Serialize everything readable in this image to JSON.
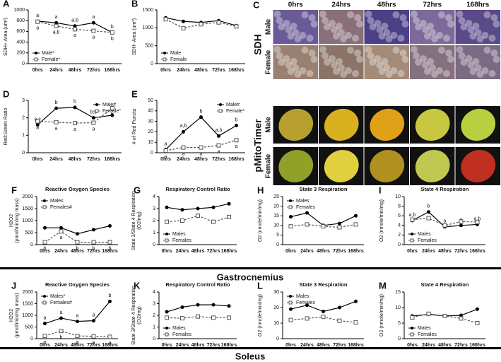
{
  "chart_data": [
    {
      "type": "line",
      "panel": "A",
      "ylabel": [
        "SDH+ Area (um²)"
      ],
      "categories": [
        "0hrs",
        "24hrs",
        "48hrs",
        "72hrs",
        "168hrs"
      ],
      "ylim": [
        0,
        1000
      ],
      "yticks": [
        0,
        200,
        400,
        600,
        800,
        1000
      ],
      "legend": "bottom-left",
      "series": [
        {
          "name": "Male*",
          "color": "#000000",
          "line": "solid",
          "marker": "circle",
          "values": [
            790,
            760,
            700,
            760,
            580
          ],
          "annotations": [
            "a",
            "a",
            "a,b",
            "a",
            "b"
          ]
        },
        {
          "name": "Female*",
          "color": "#555555",
          "line": "dashed",
          "marker": "square",
          "values": [
            780,
            700,
            640,
            610,
            580
          ],
          "annotations": [
            "a",
            "a,b",
            "a",
            "a",
            "b"
          ]
        }
      ]
    },
    {
      "type": "line",
      "panel": "B",
      "ylabel": [
        "SDH- Area (um²)"
      ],
      "categories": [
        "0hrs",
        "24hrs",
        "48hrs",
        "72hrs",
        "168hrs"
      ],
      "ylim": [
        0,
        1500
      ],
      "yticks": [
        0,
        500,
        1000,
        1500
      ],
      "legend": "bottom-left",
      "series": [
        {
          "name": "Male",
          "color": "#000000",
          "line": "solid",
          "marker": "circle",
          "values": [
            1280,
            1180,
            1150,
            1200,
            1060
          ]
        },
        {
          "name": "Female",
          "color": "#555555",
          "line": "dashed",
          "marker": "square",
          "values": [
            1240,
            990,
            1100,
            1150,
            1040
          ]
        }
      ]
    },
    {
      "type": "line",
      "panel": "D",
      "ylabel": [
        "Red:Green Ratio"
      ],
      "categories": [
        "0hrs",
        "24hrs",
        "48hrs",
        "72hrs",
        "168hrs"
      ],
      "ylim": [
        0,
        3
      ],
      "yticks": [
        0,
        1,
        2,
        3
      ],
      "legend": "top-right",
      "series": [
        {
          "name": "Male#",
          "color": "#000000",
          "line": "solid",
          "marker": "circle",
          "values": [
            1.6,
            2.55,
            2.6,
            2.0,
            2.15
          ],
          "annotations": [
            "a,c",
            "b",
            "b",
            "b,c",
            "b"
          ]
        },
        {
          "name": "Female°",
          "color": "#555555",
          "line": "dashed",
          "marker": "square",
          "values": [
            1.8,
            1.75,
            1.7,
            1.72,
            2.55
          ],
          "annotations": [
            "a",
            "a",
            "a",
            "a",
            "b"
          ]
        }
      ]
    },
    {
      "type": "line",
      "panel": "E",
      "ylabel": [
        "# of Red Puncta"
      ],
      "categories": [
        "0hrs",
        "24hrs",
        "48hrs",
        "72hrs",
        "168hrs"
      ],
      "ylim": [
        0,
        50
      ],
      "yticks": [
        0,
        10,
        20,
        30,
        40,
        50
      ],
      "legend": "top-right",
      "series": [
        {
          "name": "Male#",
          "color": "#000000",
          "line": "solid",
          "marker": "circle",
          "values": [
            3,
            20,
            34,
            16,
            26
          ],
          "annotations": [
            "a",
            "a,b",
            "b",
            "a,b",
            "b"
          ]
        },
        {
          "name": "Female*",
          "color": "#555555",
          "line": "dashed",
          "marker": "square",
          "values": [
            2,
            5,
            5,
            7,
            12
          ],
          "annotations": [
            "a",
            "a",
            "a",
            "a",
            "a"
          ]
        }
      ]
    },
    {
      "type": "line",
      "panel": "F",
      "title": "Reactive Oxygen Species",
      "ylabel": [
        "H2O2",
        "(pmol/min/mg mass)"
      ],
      "categories": [
        "0hrs",
        "24hrs",
        "48hrs",
        "72hrs",
        "168hrs"
      ],
      "ylim": [
        0,
        2000
      ],
      "yticks": [
        0,
        500,
        1000,
        1500,
        2000
      ],
      "legend": "top-left",
      "series": [
        {
          "name": "Males",
          "color": "#000000",
          "line": "solid",
          "marker": "circle",
          "values": [
            700,
            700,
            450,
            620,
            780
          ]
        },
        {
          "name": "Females#",
          "color": "#555555",
          "line": "dashed",
          "marker": "square",
          "values": [
            100,
            550,
            100,
            100,
            100
          ],
          "annotations": [
            "b",
            "a",
            "b",
            "b",
            "b"
          ]
        }
      ]
    },
    {
      "type": "line",
      "panel": "G",
      "title": "Respiratory Control Ratio",
      "ylabel": [
        "State 3/State 4 Respiration",
        "(O2/mg)"
      ],
      "categories": [
        "0hrs",
        "24hrs",
        "48hrs",
        "72hrs",
        "168hrs"
      ],
      "ylim": [
        0,
        4
      ],
      "yticks": [
        0,
        1,
        2,
        3,
        4
      ],
      "legend": "bottom-left",
      "series": [
        {
          "name": "Males",
          "color": "#000000",
          "line": "solid",
          "marker": "circle",
          "values": [
            3.1,
            2.9,
            3.0,
            3.1,
            3.4
          ]
        },
        {
          "name": "Females",
          "color": "#555555",
          "line": "dashed",
          "marker": "square",
          "values": [
            1.9,
            2.0,
            2.4,
            1.9,
            2.3
          ]
        }
      ]
    },
    {
      "type": "line",
      "panel": "H",
      "title": "State 3 Respiration",
      "ylabel": [
        "O2 (nmole/min/mg)"
      ],
      "categories": [
        "0hrs",
        "24hrs",
        "48hrs",
        "72hrs",
        "168hrs"
      ],
      "ylim": [
        0,
        25
      ],
      "yticks": [
        0,
        5,
        10,
        15,
        20,
        25
      ],
      "legend": "top-left",
      "series": [
        {
          "name": "Males",
          "color": "#000000",
          "line": "solid",
          "marker": "circle",
          "values": [
            14.5,
            16.5,
            10,
            11,
            15
          ]
        },
        {
          "name": "Females",
          "color": "#555555",
          "line": "dashed",
          "marker": "square",
          "values": [
            9.5,
            10.5,
            9.5,
            9,
            10.5
          ]
        }
      ]
    },
    {
      "type": "line",
      "panel": "I",
      "title": "State 4 Respiration",
      "ylabel": [
        "O2 (nmole/min/mg)"
      ],
      "categories": [
        "0hrs",
        "24hrs",
        "48hrs",
        "72hrs",
        "168hrs"
      ],
      "ylim": [
        0,
        10
      ],
      "yticks": [
        0,
        2,
        4,
        6,
        8,
        10
      ],
      "legend": "bottom-left",
      "series": [
        {
          "name": "Males",
          "color": "#000000",
          "line": "solid",
          "marker": "circle",
          "values": [
            5,
            6.8,
            3.7,
            4,
            4.2
          ],
          "annotations": [
            "a,b",
            "b",
            "a",
            "a",
            "a,b"
          ]
        },
        {
          "name": "Females",
          "color": "#555555",
          "line": "dashed",
          "marker": "square",
          "values": [
            5.2,
            5.5,
            4,
            4.8,
            4.7
          ]
        }
      ]
    },
    {
      "type": "line",
      "panel": "J",
      "title": "Reactive Oxygen Species",
      "ylabel": [
        "H2O2",
        "(pmol/min/mg mass)"
      ],
      "categories": [
        "0hrs",
        "24hrs",
        "48hrs",
        "72hrs",
        "168hrs"
      ],
      "ylim": [
        0,
        2000
      ],
      "yticks": [
        0,
        500,
        1000,
        1500,
        2000
      ],
      "legend": "top-left",
      "series": [
        {
          "name": "Males*",
          "color": "#000000",
          "line": "solid",
          "marker": "circle",
          "values": [
            650,
            880,
            740,
            770,
            1600
          ],
          "annotations": [
            "a",
            "a",
            "a",
            "a",
            "b"
          ]
        },
        {
          "name": "Females#",
          "color": "#555555",
          "line": "dashed",
          "marker": "square",
          "values": [
            120,
            330,
            120,
            100,
            80
          ],
          "annotations": [
            "a",
            "b",
            "a",
            "a",
            "a"
          ]
        }
      ]
    },
    {
      "type": "line",
      "panel": "K",
      "title": "Respiratory Control Ratio",
      "ylabel": [
        "State 3/State 4 Respiration",
        "(O2/mg)"
      ],
      "categories": [
        "0hrs",
        "24hrs",
        "48hrs",
        "72hrs",
        "168hrs"
      ],
      "ylim": [
        0,
        4
      ],
      "yticks": [
        0,
        1,
        2,
        3,
        4
      ],
      "legend": "bottom-left",
      "series": [
        {
          "name": "Males",
          "color": "#000000",
          "line": "solid",
          "marker": "circle",
          "values": [
            2.3,
            2.7,
            2.9,
            2.9,
            2.8
          ]
        },
        {
          "name": "Females",
          "color": "#555555",
          "line": "dashed",
          "marker": "square",
          "values": [
            1.8,
            1.75,
            1.9,
            1.8,
            1.8
          ]
        }
      ]
    },
    {
      "type": "line",
      "panel": "L",
      "title": "State 3 Respiration",
      "ylabel": [
        "O2 (nmole/min/mg)"
      ],
      "categories": [
        "0hrs",
        "24hrs",
        "48hrs",
        "72hrs",
        "168hrs"
      ],
      "ylim": [
        0,
        30
      ],
      "yticks": [
        0,
        10,
        20,
        30
      ],
      "legend": "top-left",
      "series": [
        {
          "name": "Males",
          "color": "#000000",
          "line": "solid",
          "marker": "circle",
          "values": [
            19,
            21.5,
            17.5,
            20,
            24
          ]
        },
        {
          "name": "Females",
          "color": "#555555",
          "line": "dashed",
          "marker": "square",
          "values": [
            12,
            13,
            14,
            11.5,
            10.5
          ]
        }
      ]
    },
    {
      "type": "line",
      "panel": "M",
      "title": "State 4 Respiration",
      "ylabel": [
        "O2 (nmole/min/mg)"
      ],
      "categories": [
        "0hrs",
        "24hrs",
        "48hrs",
        "72hrs",
        "168hrs"
      ],
      "ylim": [
        0,
        15
      ],
      "yticks": [
        0,
        5,
        10,
        15
      ],
      "legend": "bottom-left",
      "series": [
        {
          "name": "Males",
          "color": "#000000",
          "line": "solid",
          "marker": "circle",
          "values": [
            7.3,
            7.8,
            7.3,
            7.5,
            9.5
          ]
        },
        {
          "name": "Females",
          "color": "#555555",
          "line": "dashed",
          "marker": "square",
          "values": [
            6.8,
            8,
            7.3,
            6.5,
            5
          ]
        }
      ]
    }
  ],
  "image_panel": {
    "panel": "C",
    "columns": [
      "0hrs",
      "24hrs",
      "48hrs",
      "72hrs",
      "168hrs"
    ],
    "groups": [
      {
        "label": "SDH",
        "rows": [
          "Male",
          "Female"
        ]
      },
      {
        "label": "pMitoTimer",
        "rows": [
          "Male",
          "Female"
        ]
      }
    ]
  },
  "sections": [
    "Gastrocnemius",
    "Soleus"
  ]
}
